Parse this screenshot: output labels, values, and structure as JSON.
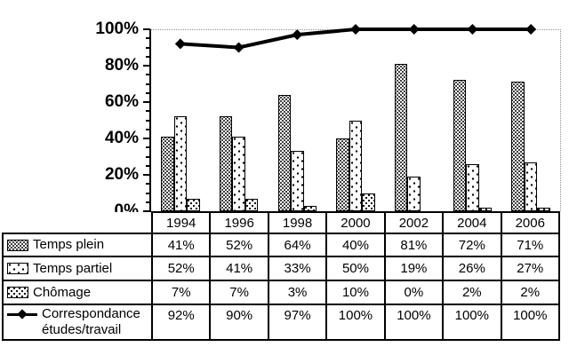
{
  "chart_data": {
    "type": "bar+line",
    "title": "",
    "categories": [
      "1994",
      "1996",
      "1998",
      "2000",
      "2002",
      "2004",
      "2006"
    ],
    "series": [
      {
        "name": "Temps plein",
        "type": "bar",
        "pattern": "dense-dots",
        "values": [
          41,
          52,
          64,
          40,
          81,
          72,
          71
        ]
      },
      {
        "name": "Temps partiel",
        "type": "bar",
        "pattern": "sparse-diamonds",
        "values": [
          52,
          41,
          33,
          50,
          19,
          26,
          27
        ]
      },
      {
        "name": "Chômage",
        "type": "bar",
        "pattern": "medium-dots",
        "values": [
          7,
          7,
          3,
          10,
          0,
          2,
          2
        ]
      },
      {
        "name": "Correspondance études/travail",
        "type": "line",
        "marker": "diamond",
        "values": [
          92,
          90,
          97,
          100,
          100,
          100,
          100
        ]
      }
    ],
    "ylim": [
      0,
      100
    ],
    "y_major_tick_labels": [
      "0%",
      "20%",
      "40%",
      "60%",
      "80%",
      "100%"
    ],
    "y_major_step": 20,
    "y_minor_step": 5,
    "value_suffix": "%",
    "gridline_at": 100,
    "grid_style": "dotted",
    "legend_position": "table-left-column",
    "xlabel": "",
    "ylabel": ""
  },
  "colors": {
    "background": "#ffffff",
    "axis": "#000000",
    "bar_border": "#000000",
    "line": "#000000",
    "marker": "#000000",
    "grid_dotted": "#909090",
    "text": "#000000",
    "table_border": "#000000"
  }
}
